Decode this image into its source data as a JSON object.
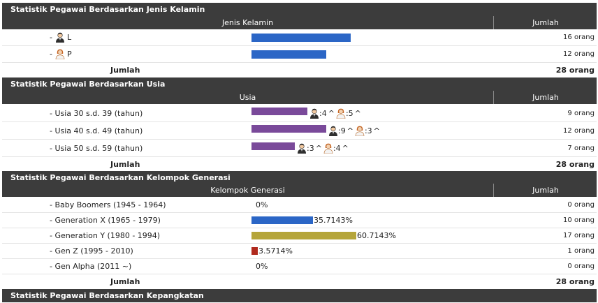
{
  "sections": {
    "gender": {
      "title": "Statistik Pegawai Berdasarkan Jenis Kelamin",
      "col_label": "Jenis Kelamin",
      "col_count": "Jumlah",
      "rows": [
        {
          "prefix": "-",
          "label": "L",
          "icon": "male-user-icon",
          "value": 16,
          "count": "16 orang"
        },
        {
          "prefix": "-",
          "label": "P",
          "icon": "female-user-icon",
          "value": 12,
          "count": "12 orang"
        }
      ],
      "total_label": "Jumlah",
      "total": "28 orang"
    },
    "age": {
      "title": "Statistik Pegawai Berdasarkan Usia",
      "col_label": "Usia",
      "col_count": "Jumlah",
      "rows": [
        {
          "label": "- Usia 30 s.d. 39 (tahun)",
          "value": 9,
          "male": ":4",
          "female": ":5",
          "caret": "^",
          "count": "9 orang"
        },
        {
          "label": "- Usia 40 s.d. 49 (tahun)",
          "value": 12,
          "male": ":9",
          "female": ":3",
          "caret": "^",
          "count": "12 orang"
        },
        {
          "label": "- Usia 50 s.d. 59 (tahun)",
          "value": 7,
          "male": ":3",
          "female": ":4",
          "caret": "^",
          "count": "7 orang"
        }
      ],
      "total_label": "Jumlah",
      "total": "28 orang"
    },
    "generation": {
      "title": "Statistik Pegawai Berdasarkan Kelompok Generasi",
      "col_label": "Kelompok Generasi",
      "col_count": "Jumlah",
      "rows": [
        {
          "label": "- Baby Boomers (1945 - 1964)",
          "value": 0,
          "pct": "0%",
          "color": "#2b66c6",
          "count": "0 orang"
        },
        {
          "label": "- Generation X (1965 - 1979)",
          "value": 35.7143,
          "pct": "35.7143%",
          "color": "#2b66c6",
          "count": "10 orang"
        },
        {
          "label": "- Generation Y (1980 - 1994)",
          "value": 60.7143,
          "pct": "60.7143%",
          "color": "#b5a53a",
          "count": "17 orang"
        },
        {
          "label": "- Gen Z (1995 - 2010)",
          "value": 3.5714,
          "pct": "3.5714%",
          "color": "#b02a1e",
          "count": "1 orang"
        },
        {
          "label": "- Gen Alpha (2011 ~)",
          "value": 0,
          "pct": "0%",
          "color": "#2b66c6",
          "count": "0 orang"
        }
      ],
      "total_label": "Jumlah",
      "total": "28 orang"
    },
    "rank": {
      "title": "Statistik Pegawai Berdasarkan Kepangkatan"
    }
  },
  "colors": {
    "header_bg": "#3c3c3c",
    "gender_bar": "#2b66c6",
    "age_bar": "#7a4a9a"
  }
}
